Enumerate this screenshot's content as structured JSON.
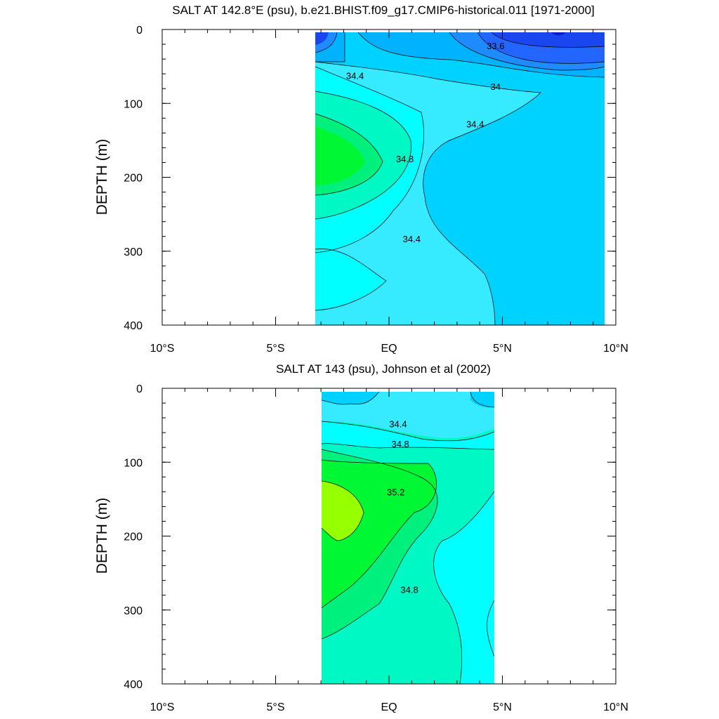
{
  "chart_data": [
    {
      "type": "heatmap",
      "title": "SALT AT 142.8°E (psu), b.e21.BHIST.f09_g17.CMIP6-historical.011 [1971-2000]",
      "ylabel": "DEPTH (m)",
      "xlim": [
        -10,
        10
      ],
      "ylim": [
        400,
        0
      ],
      "x_ticks": [
        -10,
        -5,
        0,
        5,
        10
      ],
      "x_tick_labels": [
        "10°S",
        "5°S",
        "EQ",
        "5°N",
        "10°N"
      ],
      "y_ticks": [
        0,
        100,
        200,
        300,
        400
      ],
      "y_tick_labels": [
        "0",
        "100",
        "200",
        "300",
        "400"
      ],
      "data_extent_x": [
        -3,
        10
      ],
      "contour_labels": [
        {
          "text": "33.6",
          "x": 4.7,
          "depth": 22
        },
        {
          "text": "34.4",
          "x": -1.5,
          "depth": 62
        },
        {
          "text": "34",
          "x": 4.7,
          "depth": 77
        },
        {
          "text": "34.4",
          "x": 3.8,
          "depth": 128
        },
        {
          "text": "34.8",
          "x": 0.7,
          "depth": 175
        },
        {
          "text": "34.4",
          "x": 1.0,
          "depth": 283
        }
      ]
    },
    {
      "type": "heatmap",
      "title": "SALT AT 143 (psu), Johnson et al (2002)",
      "ylabel": "DEPTH (m)",
      "xlim": [
        -10,
        10
      ],
      "ylim": [
        400,
        0
      ],
      "x_ticks": [
        -10,
        -5,
        0,
        5,
        10
      ],
      "x_tick_labels": [
        "10°S",
        "5°S",
        "EQ",
        "5°N",
        "10°N"
      ],
      "y_ticks": [
        0,
        100,
        200,
        300,
        400
      ],
      "y_tick_labels": [
        "0",
        "100",
        "200",
        "300",
        "400"
      ],
      "data_extent_x": [
        -2.8,
        5
      ],
      "contour_labels": [
        {
          "text": "34.4",
          "x": 0.4,
          "depth": 48
        },
        {
          "text": "34.8",
          "x": 0.5,
          "depth": 75
        },
        {
          "text": "35.2",
          "x": 0.3,
          "depth": 140
        },
        {
          "text": "34.8",
          "x": 0.9,
          "depth": 272
        }
      ]
    }
  ],
  "colors": {
    "s33_2": "#0a1fcf",
    "s33_4": "#1a46f0",
    "s33_6": "#2266ff",
    "s33_8": "#1e8cff",
    "s34_0": "#00b2ff",
    "s34_2": "#00d2ff",
    "s34_4": "#36eaff",
    "s34_6": "#00ffff",
    "s34_8": "#00f8c4",
    "s35_0": "#00f07e",
    "s35_2": "#00f733",
    "s35_4": "#96ff00"
  }
}
